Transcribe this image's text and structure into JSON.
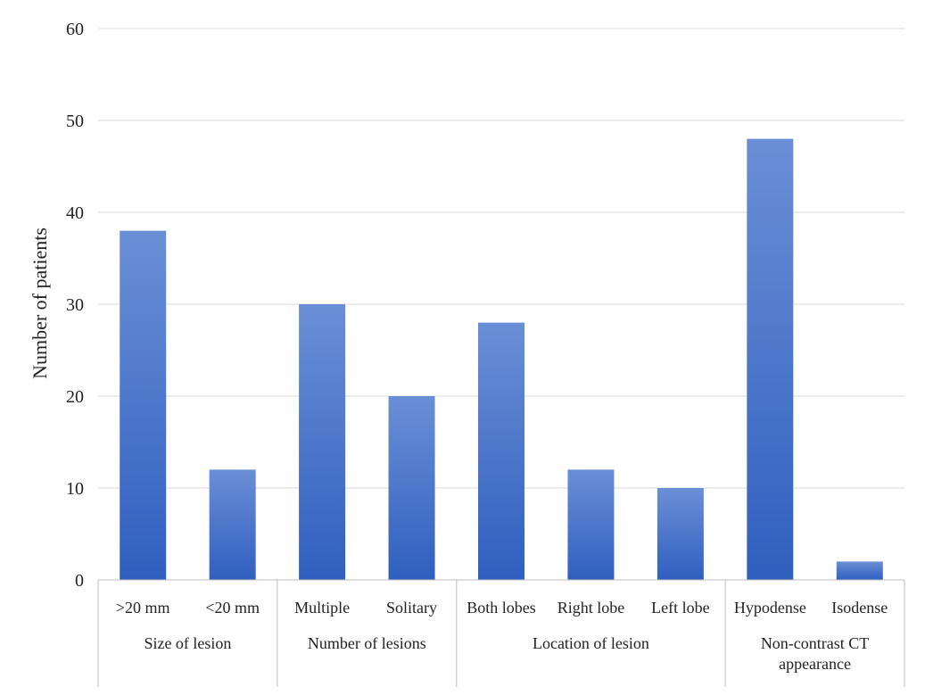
{
  "chart_data": {
    "type": "bar",
    "title": "",
    "ylabel": "Number of patients",
    "xlabel": "",
    "ylim": [
      0,
      60
    ],
    "yticks": [
      0,
      10,
      20,
      30,
      40,
      50,
      60
    ],
    "grid": "horizontal",
    "legend": "none",
    "bar_color": "#4472c4",
    "bar_color_light": "#6b8fd6",
    "bar_color_dark": "#2f5fbf",
    "categories": [
      ">20 mm",
      "<20 mm",
      "Multiple",
      "Solitary",
      "Both lobes",
      "Right lobe",
      "Left lobe",
      "Hypodense",
      "Isodense"
    ],
    "values": [
      38,
      12,
      30,
      20,
      28,
      12,
      10,
      48,
      2
    ],
    "groups": [
      {
        "label_lines": [
          "Size of lesion"
        ],
        "categories": [
          ">20 mm",
          "<20 mm"
        ]
      },
      {
        "label_lines": [
          "Number of lesions"
        ],
        "categories": [
          "Multiple",
          "Solitary"
        ]
      },
      {
        "label_lines": [
          "Location of lesion"
        ],
        "categories": [
          "Both lobes",
          "Right lobe",
          "Left lobe"
        ]
      },
      {
        "label_lines": [
          "Non-contrast CT",
          "appearance"
        ],
        "categories": [
          "Hypodense",
          "Isodense"
        ]
      }
    ]
  }
}
